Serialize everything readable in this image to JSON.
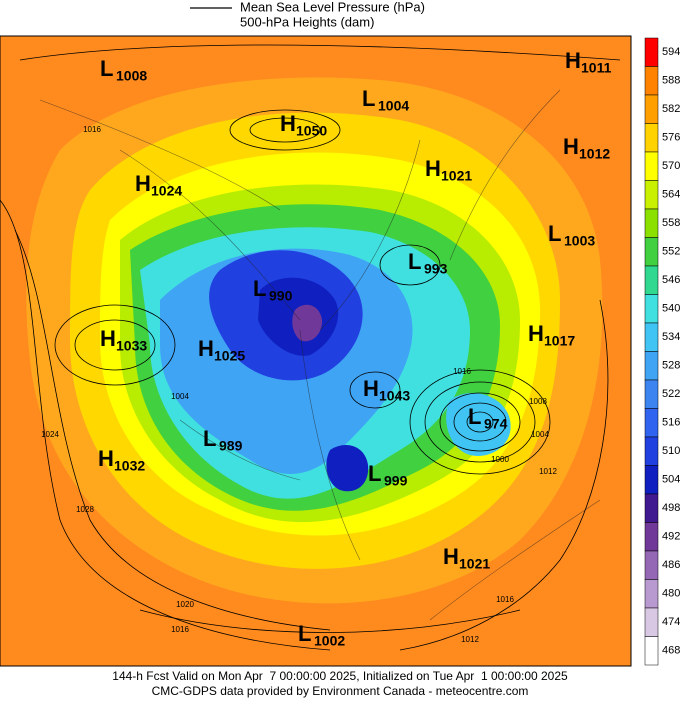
{
  "header": {
    "pressure_label": "Mean Sea Level Pressure (hPa)",
    "heights_label": "500-hPa Heights (dam)"
  },
  "colorbar": {
    "values": [
      594,
      588,
      582,
      576,
      570,
      564,
      558,
      552,
      546,
      540,
      534,
      528,
      522,
      516,
      510,
      504,
      498,
      492,
      486,
      480,
      474,
      468
    ],
    "colors": [
      "#ff0000",
      "#ff8200",
      "#ffa000",
      "#ffd200",
      "#ffff00",
      "#c8f000",
      "#8ce000",
      "#40d040",
      "#30d890",
      "#40e0e0",
      "#40c4f4",
      "#40a4f4",
      "#3c84f0",
      "#3064f0",
      "#2040e0",
      "#1020c0",
      "#401890",
      "#703898",
      "#9468b4",
      "#b89ad0",
      "#d8c8e4",
      "#ffffff"
    ]
  },
  "centers": [
    {
      "letter": "L",
      "value": 1008
    },
    {
      "letter": "H",
      "value": 1011
    },
    {
      "letter": "L",
      "value": 1004
    },
    {
      "letter": "H",
      "value": 1050
    },
    {
      "letter": "H",
      "value": 1012
    },
    {
      "letter": "H",
      "value": 1021
    },
    {
      "letter": "H",
      "value": 1024
    },
    {
      "letter": "L",
      "value": 1003
    },
    {
      "letter": "L",
      "value": 993
    },
    {
      "letter": "L",
      "value": 990
    },
    {
      "letter": "H",
      "value": 1033
    },
    {
      "letter": "H",
      "value": 1025
    },
    {
      "letter": "H",
      "value": 1017
    },
    {
      "letter": "H",
      "value": 1043
    },
    {
      "letter": "L",
      "value": 974
    },
    {
      "letter": "L",
      "value": 989
    },
    {
      "letter": "H",
      "value": 1032
    },
    {
      "letter": "L",
      "value": 999
    },
    {
      "letter": "H",
      "value": 1021
    },
    {
      "letter": "L",
      "value": 1002
    }
  ],
  "isobar_labels": [
    1016,
    1016,
    1020,
    1024,
    1028,
    1000,
    1004,
    1008,
    1012,
    1016,
    1012,
    1016,
    1004
  ],
  "footer": {
    "line1": "144-h Fcst Valid on Mon Apr  7 00:00:00 2025, Initialized on Tue Apr  1 00:00:00 2025",
    "line2": "CMC-GDPS data provided by Environment Canada - meteocentre.com"
  }
}
